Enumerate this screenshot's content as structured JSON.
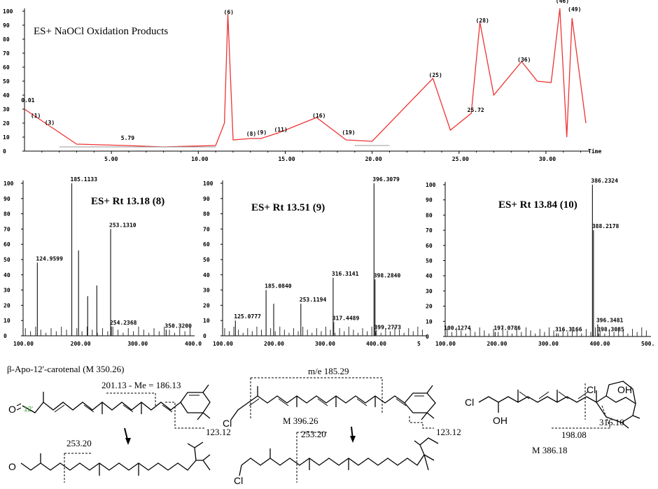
{
  "chromatogram": {
    "title": "ES+ NaOCl Oxidation Products",
    "axis_label": "Time",
    "y_ticks": [
      "0",
      "10",
      "20",
      "30",
      "40",
      "50",
      "60",
      "70",
      "80",
      "90",
      "100"
    ],
    "x_ticks": [
      "5.00",
      "10.00",
      "15.00",
      "20.00",
      "25.00",
      "30.00"
    ],
    "peak_labels": [
      {
        "text": "0.01",
        "rt": 0.05,
        "y": 35
      },
      {
        "text": "(1)",
        "rt": 0.6,
        "y": 24
      },
      {
        "text": "(3)",
        "rt": 1.4,
        "y": 19
      },
      {
        "text": "5.79",
        "rt": 5.79,
        "y": 8
      },
      {
        "text": "(6)",
        "rt": 11.7,
        "y": 98
      },
      {
        "text": "(8)",
        "rt": 13.0,
        "y": 11
      },
      {
        "text": "(9)",
        "rt": 13.6,
        "y": 12
      },
      {
        "text": "(11)",
        "rt": 14.6,
        "y": 14
      },
      {
        "text": "(16)",
        "rt": 16.8,
        "y": 24
      },
      {
        "text": "(19)",
        "rt": 18.5,
        "y": 12
      },
      {
        "text": "(25)",
        "rt": 23.5,
        "y": 53
      },
      {
        "text": "25.72",
        "rt": 25.72,
        "y": 28
      },
      {
        "text": "(28)",
        "rt": 26.2,
        "y": 92
      },
      {
        "text": "(36)",
        "rt": 28.6,
        "y": 64
      },
      {
        "text": "(46)",
        "rt": 30.8,
        "y": 106
      },
      {
        "text": "(49)",
        "rt": 31.5,
        "y": 100
      }
    ]
  },
  "spectra": [
    {
      "title": "ES+ Rt 13.18 (8)",
      "x_ticks": [
        "100.00",
        "200.00",
        "300.00",
        "400.0"
      ],
      "y_ticks": [
        "0",
        "10",
        "20",
        "30",
        "40",
        "50",
        "60",
        "70",
        "80",
        "90",
        "100"
      ],
      "labels": [
        {
          "text": "185.1133",
          "mz": 185.11,
          "y": 100
        },
        {
          "text": "124.9599",
          "mz": 124.96,
          "y": 48
        },
        {
          "text": "253.1310",
          "mz": 253.13,
          "y": 70
        },
        {
          "text": "254.2368",
          "mz": 254.24,
          "y": 6
        },
        {
          "text": "350.3200",
          "mz": 350.32,
          "y": 4
        }
      ]
    },
    {
      "title": "ES+ Rt 13.51 (9)",
      "x_ticks": [
        "100.00",
        "200.00",
        "300.00",
        "400.00",
        "5"
      ],
      "y_ticks": [
        "0",
        "10",
        "20",
        "30",
        "40",
        "50",
        "60",
        "70",
        "80",
        "90",
        "100"
      ],
      "labels": [
        {
          "text": "396.3079",
          "mz": 396.31,
          "y": 100
        },
        {
          "text": "398.2840",
          "mz": 398.28,
          "y": 37
        },
        {
          "text": "316.3141",
          "mz": 316.31,
          "y": 38
        },
        {
          "text": "185.0840",
          "mz": 185.08,
          "y": 30
        },
        {
          "text": "253.1194",
          "mz": 253.12,
          "y": 21
        },
        {
          "text": "125.0777",
          "mz": 125.08,
          "y": 10
        },
        {
          "text": "317.4489",
          "mz": 317.45,
          "y": 9
        },
        {
          "text": "399.2773",
          "mz": 399.28,
          "y": 3
        }
      ]
    },
    {
      "title": "ES+ Rt 13.84 (10)",
      "x_ticks": [
        "100.00",
        "200.00",
        "300.00",
        "400.00",
        "500."
      ],
      "y_ticks": [
        "0",
        "10",
        "20",
        "30",
        "40",
        "50",
        "60",
        "70",
        "80",
        "90",
        "100"
      ],
      "labels": [
        {
          "text": "386.2324",
          "mz": 386.23,
          "y": 100
        },
        {
          "text": "388.2178",
          "mz": 388.22,
          "y": 70
        },
        {
          "text": "396.3481",
          "mz": 396.35,
          "y": 8
        },
        {
          "text": "398.3085",
          "mz": 398.31,
          "y": 2
        },
        {
          "text": "100.1274",
          "mz": 100.13,
          "y": 3
        },
        {
          "text": "197.0786",
          "mz": 197.08,
          "y": 3
        },
        {
          "text": "316.3166",
          "mz": 316.32,
          "y": 2
        }
      ]
    }
  ],
  "structures": {
    "apo_title": "β-Apo-12'-carotenal (M 350.26)",
    "frag_201": "201.13  -  Me = 186.13",
    "frag_123a": "123.12",
    "frag_253a": "253.20",
    "atom_o1": "O",
    "atom_o2": "O",
    "pos_12": "12'",
    "frag_185": "m/e 185.29",
    "m396": "M 396.26",
    "frag_123b": "123.12",
    "frag_253b": "253.20",
    "atom_cl1": "Cl",
    "atom_cl2": "Cl",
    "atom_cl3": "Cl",
    "atom_cl4": "Cl",
    "atom_oh1": "OH",
    "atom_oh2": "OH",
    "frag_316": "316.10",
    "frag_198": "198.08",
    "m386": "M 386.18"
  },
  "chart_data": [
    {
      "type": "line",
      "title": "ES+ NaOCl Oxidation Products",
      "xlabel": "Time",
      "ylabel": "",
      "xlim": [
        0,
        32.5
      ],
      "ylim": [
        0,
        100
      ],
      "x": [
        0,
        0.6,
        1.2,
        3,
        5.8,
        8,
        11,
        11.5,
        11.7,
        12,
        13,
        13.6,
        14.6,
        16.8,
        18.5,
        20,
        23.5,
        24.5,
        25.7,
        26.2,
        27,
        28.6,
        29.5,
        30.3,
        30.8,
        31.2,
        31.5,
        32.3
      ],
      "values": [
        30,
        25,
        20,
        5,
        4,
        3,
        4,
        20,
        98,
        8,
        9,
        9,
        13,
        24,
        8,
        7,
        52,
        15,
        27,
        92,
        40,
        64,
        50,
        49,
        102,
        10,
        95,
        20
      ]
    },
    {
      "type": "bar",
      "title": "ES+ Rt 13.18 (8)",
      "xlim": [
        100,
        400
      ],
      "ylim": [
        0,
        100
      ],
      "x": [
        124.96,
        185.11,
        197,
        213,
        229,
        253.13,
        254.24,
        350.32
      ],
      "values": [
        48,
        100,
        56,
        26,
        33,
        70,
        6,
        4
      ]
    },
    {
      "type": "bar",
      "title": "ES+ Rt 13.51 (9)",
      "xlim": [
        100,
        500
      ],
      "ylim": [
        0,
        100
      ],
      "x": [
        125.08,
        185.08,
        200,
        253.12,
        316.31,
        317.45,
        396.31,
        398.28,
        399.28
      ],
      "values": [
        10,
        30,
        21,
        21,
        38,
        9,
        100,
        37,
        3
      ]
    },
    {
      "type": "bar",
      "title": "ES+ Rt 13.84 (10)",
      "xlim": [
        100,
        500
      ],
      "ylim": [
        0,
        100
      ],
      "x": [
        100.13,
        197.08,
        316.32,
        386.23,
        388.22,
        396.35,
        398.31
      ],
      "values": [
        3,
        3,
        2,
        100,
        70,
        8,
        2
      ]
    }
  ]
}
